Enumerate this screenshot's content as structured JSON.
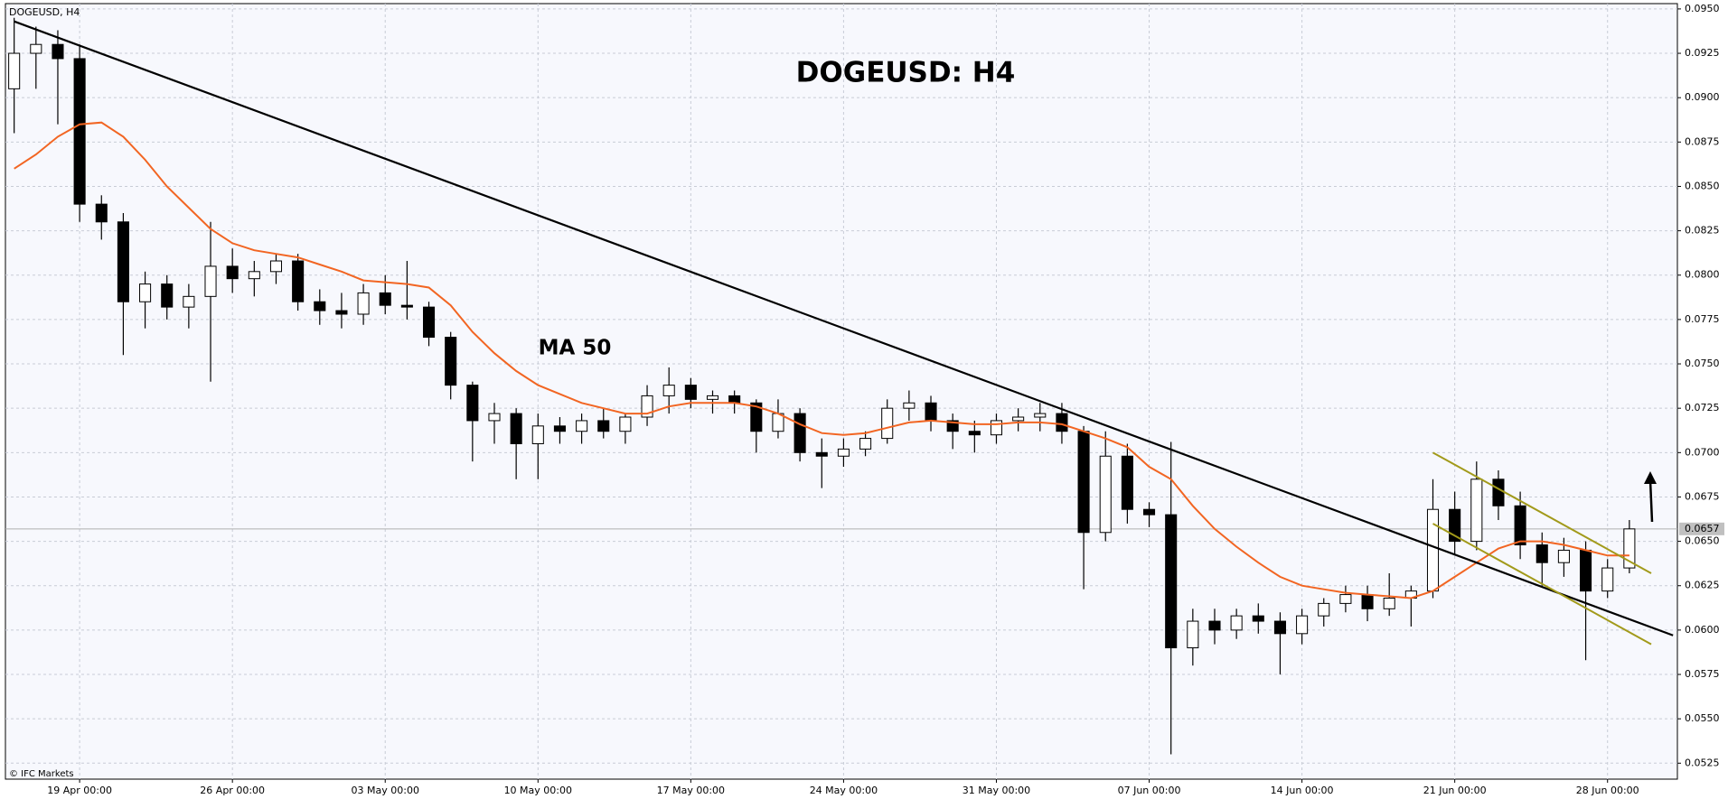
{
  "chart_data": {
    "type": "candlestick",
    "title": "DOGEUSD: H4",
    "symbol_label": "DOGEUSD, H4",
    "copyright": "© IFC Markets",
    "categories": [
      null,
      null,
      null,
      "19 Apr 00:00",
      null,
      null,
      null,
      null,
      null,
      null,
      "26 Apr 00:00",
      null,
      null,
      null,
      null,
      null,
      null,
      "03 May 00:00",
      null,
      null,
      null,
      null,
      null,
      null,
      "10 May 00:00",
      null,
      null,
      null,
      null,
      null,
      null,
      "17 May 00:00",
      null,
      null,
      null,
      null,
      null,
      null,
      "24 May 00:00",
      null,
      null,
      null,
      null,
      null,
      null,
      "31 May 00:00",
      null,
      null,
      null,
      null,
      null,
      null,
      "07 Jun 00:00",
      null,
      null,
      null,
      null,
      null,
      null,
      "14 Jun 00:00",
      null,
      null,
      null,
      null,
      null,
      null,
      "21 Jun 00:00",
      null,
      null,
      null,
      null,
      null,
      null,
      "28 Jun 00:00",
      null
    ],
    "open": [
      0.0905,
      0.0925,
      0.093,
      0.0922,
      0.084,
      0.083,
      0.0785,
      0.0795,
      0.0782,
      0.0788,
      0.0805,
      0.0798,
      0.0802,
      0.0808,
      0.0785,
      0.078,
      0.0778,
      0.079,
      0.0783,
      0.0782,
      0.0765,
      0.0738,
      0.0718,
      0.0722,
      0.0705,
      0.0715,
      0.0712,
      0.0718,
      0.0712,
      0.072,
      0.0732,
      0.0738,
      0.073,
      0.0732,
      0.0728,
      0.0712,
      0.0722,
      0.07,
      0.0698,
      0.0702,
      0.0708,
      0.0725,
      0.0728,
      0.0718,
      0.0712,
      0.071,
      0.0718,
      0.072,
      0.0722,
      0.0712,
      0.0655,
      0.0698,
      0.0668,
      0.0665,
      0.059,
      0.0605,
      0.06,
      0.0608,
      0.0605,
      0.0598,
      0.0608,
      0.0615,
      0.062,
      0.0612,
      0.0618,
      0.0622,
      0.0668,
      0.065,
      0.0685,
      0.067,
      0.0648,
      0.0638,
      0.0645,
      0.0622,
      0.0635
    ],
    "high": [
      0.0945,
      0.094,
      0.0938,
      0.093,
      0.0845,
      0.0835,
      0.0802,
      0.08,
      0.0795,
      0.083,
      0.0815,
      0.0808,
      0.0812,
      0.0812,
      0.0792,
      0.079,
      0.0795,
      0.08,
      0.0808,
      0.0785,
      0.0768,
      0.074,
      0.0728,
      0.0725,
      0.0722,
      0.072,
      0.0722,
      0.0725,
      0.0722,
      0.0738,
      0.0748,
      0.0742,
      0.0735,
      0.0735,
      0.073,
      0.073,
      0.0725,
      0.0708,
      0.0708,
      0.0712,
      0.073,
      0.0735,
      0.0732,
      0.0722,
      0.0718,
      0.0722,
      0.0725,
      0.0728,
      0.0728,
      0.0715,
      0.0712,
      0.0705,
      0.0672,
      0.0706,
      0.0612,
      0.0612,
      0.0612,
      0.0615,
      0.061,
      0.0612,
      0.0618,
      0.0625,
      0.0625,
      0.0632,
      0.0625,
      0.0685,
      0.0678,
      0.0695,
      0.069,
      0.0678,
      0.0655,
      0.0652,
      0.065,
      0.064,
      0.0662
    ],
    "low": [
      0.088,
      0.0905,
      0.0885,
      0.083,
      0.082,
      0.0755,
      0.077,
      0.0775,
      0.077,
      0.074,
      0.079,
      0.0788,
      0.0795,
      0.078,
      0.0772,
      0.077,
      0.0772,
      0.0778,
      0.0775,
      0.076,
      0.073,
      0.0695,
      0.0705,
      0.0685,
      0.0685,
      0.0705,
      0.0705,
      0.0708,
      0.0705,
      0.0715,
      0.0722,
      0.0725,
      0.0722,
      0.0722,
      0.07,
      0.0708,
      0.0695,
      0.068,
      0.0692,
      0.0698,
      0.0705,
      0.0718,
      0.0712,
      0.0702,
      0.07,
      0.0705,
      0.0712,
      0.0712,
      0.0705,
      0.0623,
      0.065,
      0.066,
      0.0658,
      0.053,
      0.058,
      0.0592,
      0.0595,
      0.0598,
      0.0575,
      0.0592,
      0.0602,
      0.061,
      0.0605,
      0.0608,
      0.0602,
      0.0618,
      0.0642,
      0.0645,
      0.0662,
      0.064,
      0.0625,
      0.063,
      0.0583,
      0.0618,
      0.0632
    ],
    "close": [
      0.0925,
      0.093,
      0.0922,
      0.084,
      0.083,
      0.0785,
      0.0795,
      0.0782,
      0.0788,
      0.0805,
      0.0798,
      0.0802,
      0.0808,
      0.0785,
      0.078,
      0.0778,
      0.079,
      0.0783,
      0.0782,
      0.0765,
      0.0738,
      0.0718,
      0.0722,
      0.0705,
      0.0715,
      0.0712,
      0.0718,
      0.0712,
      0.072,
      0.0732,
      0.0738,
      0.073,
      0.0732,
      0.0728,
      0.0712,
      0.0722,
      0.07,
      0.0698,
      0.0702,
      0.0708,
      0.0725,
      0.0728,
      0.0718,
      0.0712,
      0.071,
      0.0718,
      0.072,
      0.0722,
      0.0712,
      0.0655,
      0.0698,
      0.0668,
      0.0665,
      0.059,
      0.0605,
      0.06,
      0.0608,
      0.0605,
      0.0598,
      0.0608,
      0.0615,
      0.062,
      0.0612,
      0.0618,
      0.0622,
      0.0668,
      0.065,
      0.0685,
      0.067,
      0.0648,
      0.0638,
      0.0645,
      0.0622,
      0.0635,
      0.0657
    ],
    "up_color": "#ffffff",
    "down_color": "#000000",
    "overlays": [
      {
        "name": "MA 50",
        "color": "#f26522",
        "values": [
          0.086,
          0.0868,
          0.0878,
          0.0885,
          0.0886,
          0.0878,
          0.0865,
          0.085,
          0.0838,
          0.0826,
          0.0818,
          0.0814,
          0.0812,
          0.081,
          0.0806,
          0.0802,
          0.0797,
          0.0796,
          0.0795,
          0.0793,
          0.0783,
          0.0768,
          0.0756,
          0.0746,
          0.0738,
          0.0733,
          0.0728,
          0.0725,
          0.0722,
          0.0722,
          0.0726,
          0.0728,
          0.0728,
          0.0728,
          0.0726,
          0.0722,
          0.0716,
          0.0711,
          0.071,
          0.0711,
          0.0714,
          0.0717,
          0.0718,
          0.0717,
          0.0716,
          0.0716,
          0.0717,
          0.0717,
          0.0716,
          0.0712,
          0.0708,
          0.0703,
          0.0692,
          0.0685,
          0.067,
          0.0657,
          0.0647,
          0.0638,
          0.063,
          0.0625,
          0.0623,
          0.0621,
          0.062,
          0.0619,
          0.0618,
          0.0622,
          0.063,
          0.0638,
          0.0646,
          0.065,
          0.065,
          0.0648,
          0.0645,
          0.0642,
          0.0642
        ]
      }
    ],
    "trendlines": [
      {
        "color": "#000000",
        "x": [
          0,
          76
        ],
        "values": [
          0.0943,
          0.0597
        ]
      },
      {
        "color": "#a29a1a",
        "x": [
          65,
          75
        ],
        "values": [
          0.07,
          0.0632
        ]
      },
      {
        "color": "#a29a1a",
        "x": [
          65,
          75
        ],
        "values": [
          0.066,
          0.0592
        ]
      }
    ],
    "ylim": [
      0.0516,
      0.0953
    ],
    "yticks": [
      {
        "value": 0.0525,
        "label": "0.0525"
      },
      {
        "value": 0.055,
        "label": "0.0550"
      },
      0.0575,
      {
        "value": 0.06,
        "label": "0.0600"
      },
      0.0625,
      {
        "value": 0.065,
        "label": "0.0650"
      },
      0.0675,
      {
        "value": 0.07,
        "label": "0.0700"
      },
      0.0725,
      {
        "value": 0.075,
        "label": "0.0750"
      },
      0.0775,
      {
        "value": 0.08,
        "label": "0.0800"
      },
      0.0825,
      {
        "value": 0.085,
        "label": "0.0850"
      },
      0.0875,
      {
        "value": 0.09,
        "label": "0.0900"
      },
      0.0925,
      {
        "value": 0.095,
        "label": "0.0950"
      }
    ],
    "grid": true
  }
}
